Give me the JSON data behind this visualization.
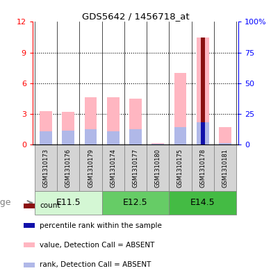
{
  "title": "GDS5642 / 1456718_at",
  "samples": [
    "GSM1310173",
    "GSM1310176",
    "GSM1310179",
    "GSM1310174",
    "GSM1310177",
    "GSM1310180",
    "GSM1310175",
    "GSM1310178",
    "GSM1310181"
  ],
  "value_absent": [
    3.3,
    3.2,
    4.6,
    4.6,
    4.5,
    0.15,
    7.0,
    10.5,
    1.7
  ],
  "rank_absent": [
    1.3,
    1.4,
    1.5,
    1.3,
    1.5,
    0.1,
    1.7,
    2.2,
    0.15
  ],
  "count_bar": [
    0,
    0,
    0,
    0,
    0,
    0,
    0,
    10.5,
    0
  ],
  "percentile_bar": [
    0,
    0,
    0,
    0,
    0,
    0,
    0,
    2.2,
    0
  ],
  "ylim_left": [
    0,
    12
  ],
  "ylim_right": [
    0,
    100
  ],
  "yticks_left": [
    0,
    3,
    6,
    9,
    12
  ],
  "yticks_right": [
    0,
    25,
    50,
    75,
    100
  ],
  "yticklabels_right": [
    "0",
    "25",
    "50",
    "75",
    "100%"
  ],
  "color_count": "#8b1010",
  "color_percentile": "#1010aa",
  "color_value_absent": "#ffb6c1",
  "color_rank_absent": "#b0b8e8",
  "bar_width": 0.55,
  "narrow_bar_width": 0.18,
  "age_groups": [
    {
      "label": "E11.5",
      "start": 0,
      "end": 2,
      "color": "#d4f7d4"
    },
    {
      "label": "E12.5",
      "start": 3,
      "end": 5,
      "color": "#66cc66"
    },
    {
      "label": "E14.5",
      "start": 6,
      "end": 8,
      "color": "#44bb44"
    }
  ],
  "legend_items": [
    {
      "color": "#8b1010",
      "label": "count"
    },
    {
      "color": "#1010aa",
      "label": "percentile rank within the sample"
    },
    {
      "color": "#ffb6c1",
      "label": "value, Detection Call = ABSENT"
    },
    {
      "color": "#b0b8e8",
      "label": "rank, Detection Call = ABSENT"
    }
  ],
  "age_label": "age",
  "bg_color": "#ffffff",
  "label_box_color": "#d4d4d4",
  "label_box_edge": "#888888"
}
